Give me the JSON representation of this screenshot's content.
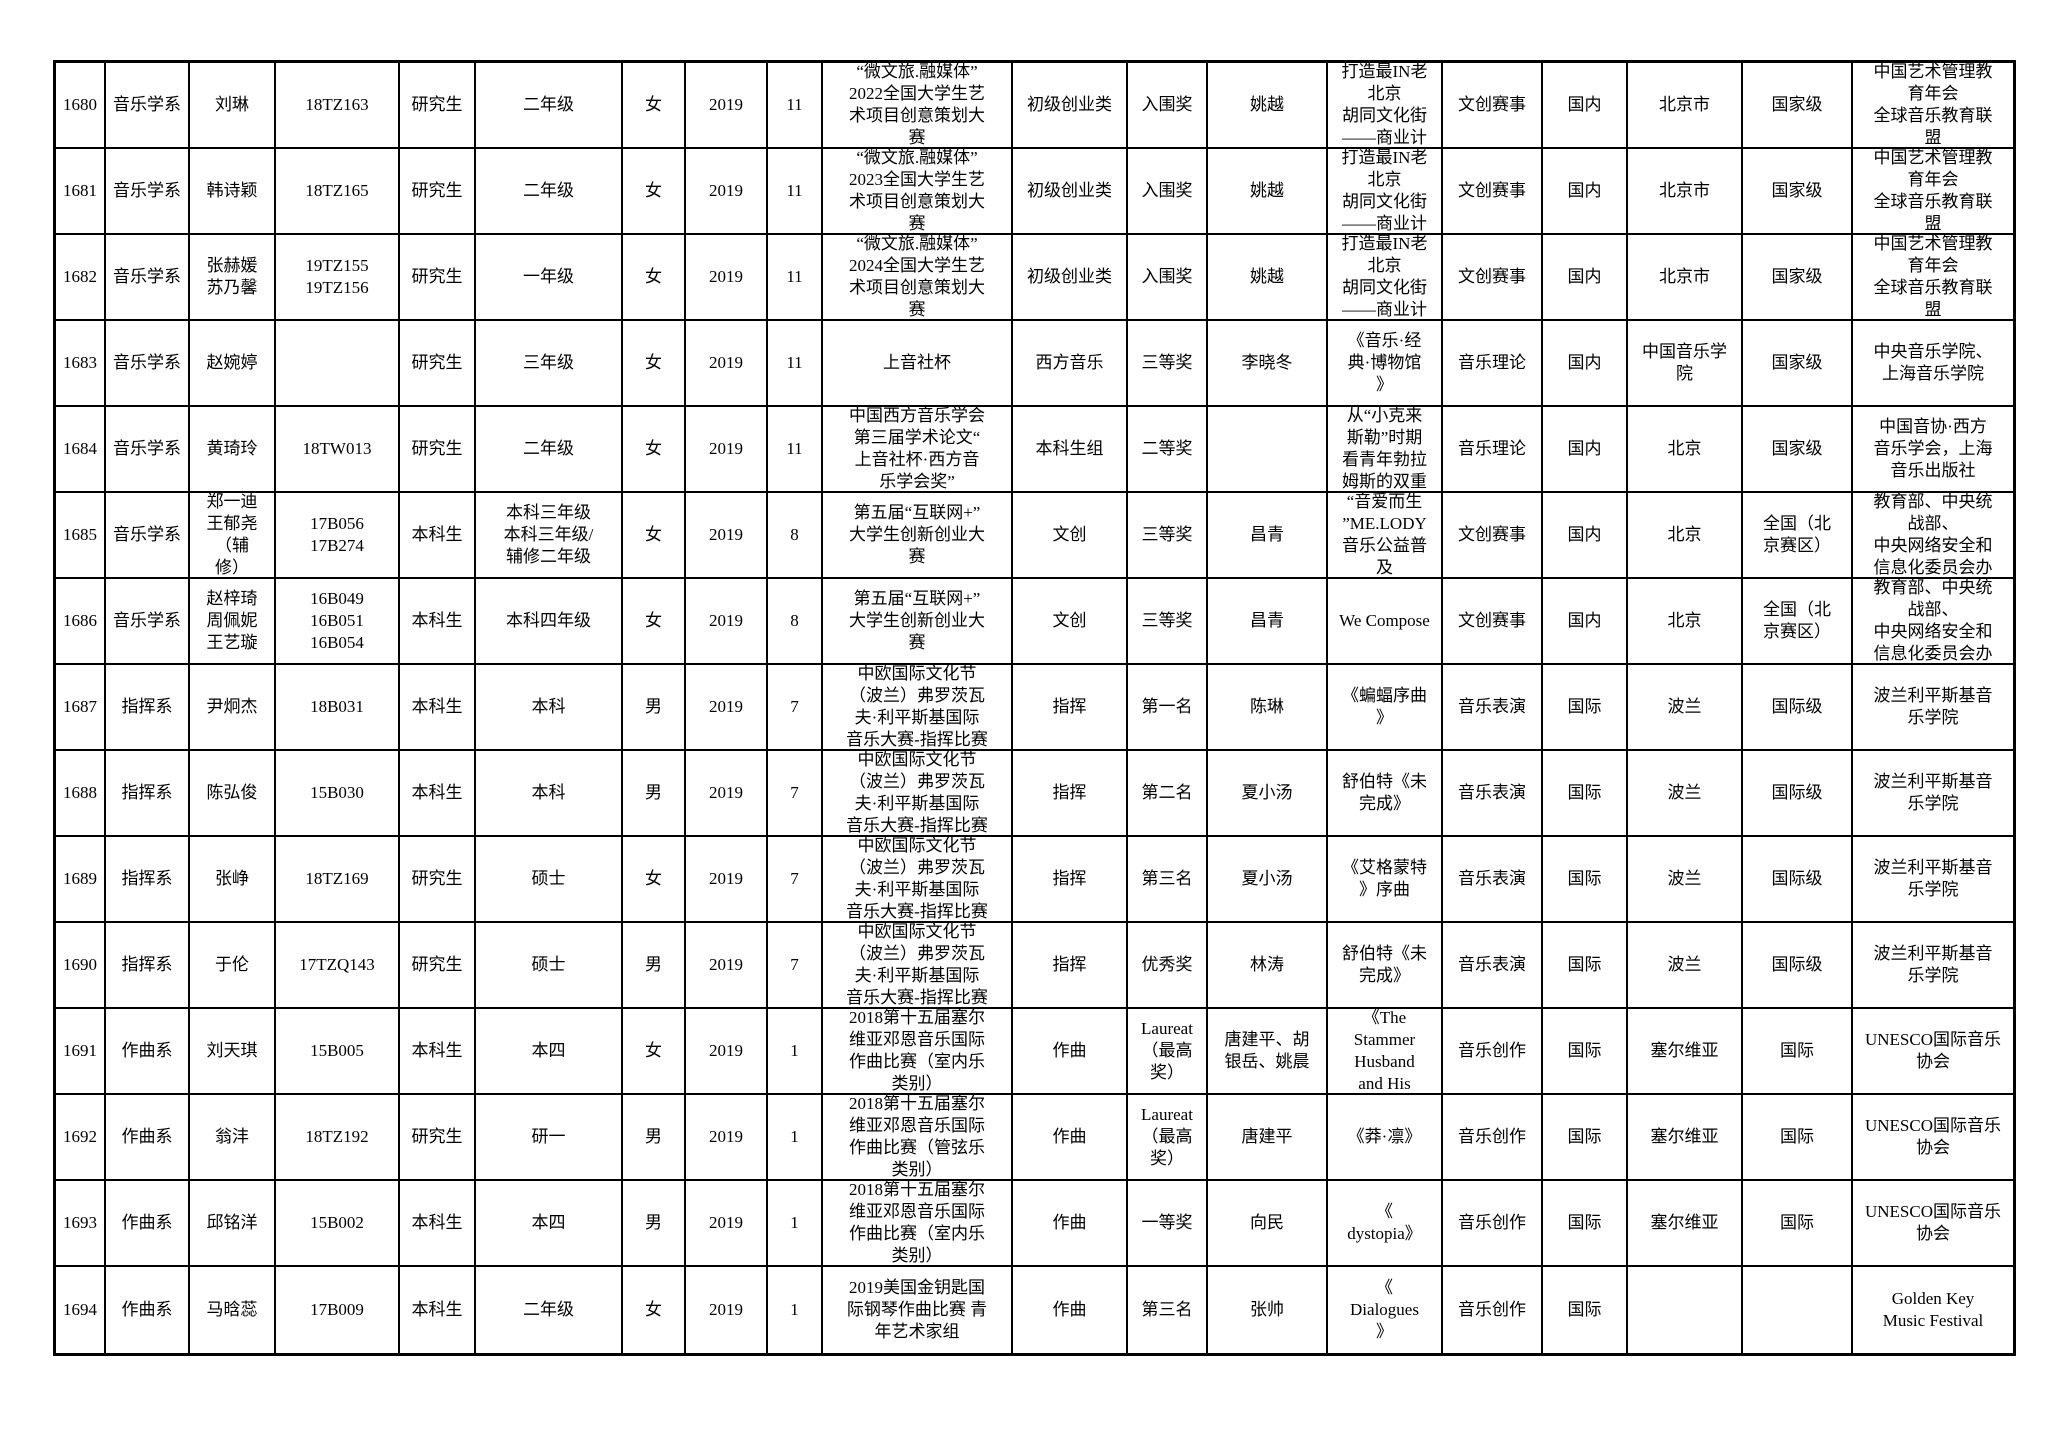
{
  "document": {
    "kind": "student-competition-awards-table",
    "language": "zh-CN",
    "text_color": "#000000",
    "border_color": "#000000",
    "background_color": "#ffffff"
  },
  "table": {
    "columns": [
      "index",
      "department",
      "name",
      "student_id",
      "student_type",
      "grade",
      "gender",
      "year",
      "month",
      "competition",
      "category",
      "award",
      "advisor",
      "work",
      "event_type",
      "scope",
      "location",
      "level",
      "organizer"
    ],
    "rows": [
      {
        "index": "1680",
        "department": "音乐学系",
        "name": "刘琳",
        "student_id": "18TZ163",
        "student_type": "研究生",
        "grade": "二年级",
        "gender": "女",
        "year": "2019",
        "month": "11",
        "competition": "“微文旅.融媒体”\n2022全国大学生艺\n术项目创意策划大\n赛",
        "category": "初级创业类",
        "award": "入围奖",
        "advisor": "姚越",
        "work": "打造最IN老\n北京\n胡同文化街\n——商业计",
        "event_type": "文创赛事",
        "scope": "国内",
        "location": "北京市",
        "level": "国家级",
        "organizer": "中国艺术管理教\n育年会\n全球音乐教育联\n盟"
      },
      {
        "index": "1681",
        "department": "音乐学系",
        "name": "韩诗颖",
        "student_id": "18TZ165",
        "student_type": "研究生",
        "grade": "二年级",
        "gender": "女",
        "year": "2019",
        "month": "11",
        "competition": "“微文旅.融媒体”\n2023全国大学生艺\n术项目创意策划大\n赛",
        "category": "初级创业类",
        "award": "入围奖",
        "advisor": "姚越",
        "work": "打造最IN老\n北京\n胡同文化街\n——商业计",
        "event_type": "文创赛事",
        "scope": "国内",
        "location": "北京市",
        "level": "国家级",
        "organizer": "中国艺术管理教\n育年会\n全球音乐教育联\n盟"
      },
      {
        "index": "1682",
        "department": "音乐学系",
        "name": "张赫媛\n苏乃馨",
        "student_id": "19TZ155\n19TZ156",
        "student_type": "研究生",
        "grade": "一年级",
        "gender": "女",
        "year": "2019",
        "month": "11",
        "competition": "“微文旅.融媒体”\n2024全国大学生艺\n术项目创意策划大\n赛",
        "category": "初级创业类",
        "award": "入围奖",
        "advisor": "姚越",
        "work": "打造最IN老\n北京\n胡同文化街\n——商业计",
        "event_type": "文创赛事",
        "scope": "国内",
        "location": "北京市",
        "level": "国家级",
        "organizer": "中国艺术管理教\n育年会\n全球音乐教育联\n盟"
      },
      {
        "index": "1683",
        "department": "音乐学系",
        "name": "赵婉婷",
        "student_id": "",
        "student_type": "研究生",
        "grade": "三年级",
        "gender": "女",
        "year": "2019",
        "month": "11",
        "competition": "上音社杯",
        "category": "西方音乐",
        "award": "三等奖",
        "advisor": "李晓冬",
        "work": "《音乐·经\n典·博物馆\n》",
        "event_type": "音乐理论",
        "scope": "国内",
        "location": "中国音乐学\n院",
        "level": "国家级",
        "organizer": "中央音乐学院、\n上海音乐学院"
      },
      {
        "index": "1684",
        "department": "音乐学系",
        "name": "黄琦玲",
        "student_id": "18TW013",
        "student_type": "研究生",
        "grade": "二年级",
        "gender": "女",
        "year": "2019",
        "month": "11",
        "competition": "中国西方音乐学会\n第三届学术论文“\n上音社杯·西方音\n乐学会奖”",
        "category": "本科生组",
        "award": "二等奖",
        "advisor": "",
        "work": "从“小克来\n斯勒”时期\n看青年勃拉\n姆斯的双重",
        "event_type": "音乐理论",
        "scope": "国内",
        "location": "北京",
        "level": "国家级",
        "organizer": "中国音协·西方\n音乐学会，上海\n音乐出版社"
      },
      {
        "index": "1685",
        "department": "音乐学系",
        "name": "郑一迪\n王郁尧\n（辅\n修）",
        "student_id": "17B056\n17B274",
        "student_type": "本科生",
        "grade": "本科三年级\n本科三年级/\n辅修二年级",
        "gender": "女",
        "year": "2019",
        "month": "8",
        "competition": "第五届“互联网+”\n大学生创新创业大\n赛",
        "category": "文创",
        "award": "三等奖",
        "advisor": "昌青",
        "work": "“音爱而生\n”ME.LODY\n音乐公益普\n及",
        "event_type": "文创赛事",
        "scope": "国内",
        "location": "北京",
        "level": "全国（北\n京赛区）",
        "organizer": "教育部、中央统\n战部、\n中央网络安全和\n信息化委员会办"
      },
      {
        "index": "1686",
        "department": "音乐学系",
        "name": "赵梓琦\n周佩妮\n王艺璇",
        "student_id": "16B049\n16B051\n16B054",
        "student_type": "本科生",
        "grade": "本科四年级",
        "gender": "女",
        "year": "2019",
        "month": "8",
        "competition": "第五届“互联网+”\n大学生创新创业大\n赛",
        "category": "文创",
        "award": "三等奖",
        "advisor": "昌青",
        "work": "We Compose",
        "event_type": "文创赛事",
        "scope": "国内",
        "location": "北京",
        "level": "全国（北\n京赛区）",
        "organizer": "教育部、中央统\n战部、\n中央网络安全和\n信息化委员会办"
      },
      {
        "index": "1687",
        "department": "指挥系",
        "name": "尹炯杰",
        "student_id": "18B031",
        "student_type": "本科生",
        "grade": "本科",
        "gender": "男",
        "year": "2019",
        "month": "7",
        "competition": "中欧国际文化节\n（波兰）弗罗茨瓦\n夫·利平斯基国际\n音乐大赛-指挥比赛",
        "category": "指挥",
        "award": "第一名",
        "advisor": "陈琳",
        "work": "《蝙蝠序曲\n》",
        "event_type": "音乐表演",
        "scope": "国际",
        "location": "波兰",
        "level": "国际级",
        "organizer": "波兰利平斯基音\n乐学院"
      },
      {
        "index": "1688",
        "department": "指挥系",
        "name": "陈弘俊",
        "student_id": "15B030",
        "student_type": "本科生",
        "grade": "本科",
        "gender": "男",
        "year": "2019",
        "month": "7",
        "competition": "中欧国际文化节\n（波兰）弗罗茨瓦\n夫·利平斯基国际\n音乐大赛-指挥比赛",
        "category": "指挥",
        "award": "第二名",
        "advisor": "夏小汤",
        "work": "舒伯特《未\n完成》",
        "event_type": "音乐表演",
        "scope": "国际",
        "location": "波兰",
        "level": "国际级",
        "organizer": "波兰利平斯基音\n乐学院"
      },
      {
        "index": "1689",
        "department": "指挥系",
        "name": "张峥",
        "student_id": "18TZ169",
        "student_type": "研究生",
        "grade": "硕士",
        "gender": "女",
        "year": "2019",
        "month": "7",
        "competition": "中欧国际文化节\n（波兰）弗罗茨瓦\n夫·利平斯基国际\n音乐大赛-指挥比赛",
        "category": "指挥",
        "award": "第三名",
        "advisor": "夏小汤",
        "work": "《艾格蒙特\n》序曲",
        "event_type": "音乐表演",
        "scope": "国际",
        "location": "波兰",
        "level": "国际级",
        "organizer": "波兰利平斯基音\n乐学院"
      },
      {
        "index": "1690",
        "department": "指挥系",
        "name": "于伦",
        "student_id": "17TZQ143",
        "student_type": "研究生",
        "grade": "硕士",
        "gender": "男",
        "year": "2019",
        "month": "7",
        "competition": "中欧国际文化节\n（波兰）弗罗茨瓦\n夫·利平斯基国际\n音乐大赛-指挥比赛",
        "category": "指挥",
        "award": "优秀奖",
        "advisor": "林涛",
        "work": "舒伯特《未\n完成》",
        "event_type": "音乐表演",
        "scope": "国际",
        "location": "波兰",
        "level": "国际级",
        "organizer": "波兰利平斯基音\n乐学院"
      },
      {
        "index": "1691",
        "department": "作曲系",
        "name": "刘天琪",
        "student_id": "15B005",
        "student_type": "本科生",
        "grade": "本四",
        "gender": "女",
        "year": "2019",
        "month": "1",
        "competition": "2018第十五届塞尔\n维亚邓恩音乐国际\n作曲比赛（室内乐\n类别）",
        "category": "作曲",
        "award": "Laureat\n（最高\n奖）",
        "advisor": "唐建平、胡\n银岳、姚晨",
        "work": "《The\nStammer\nHusband\nand His",
        "event_type": "音乐创作",
        "scope": "国际",
        "location": "塞尔维亚",
        "level": "国际",
        "organizer": "UNESCO国际音乐\n协会"
      },
      {
        "index": "1692",
        "department": "作曲系",
        "name": "翁沣",
        "student_id": "18TZ192",
        "student_type": "研究生",
        "grade": "研一",
        "gender": "男",
        "year": "2019",
        "month": "1",
        "competition": "2018第十五届塞尔\n维亚邓恩音乐国际\n作曲比赛（管弦乐\n类别）",
        "category": "作曲",
        "award": "Laureat\n（最高\n奖）",
        "advisor": "唐建平",
        "work": "《莽·凛》",
        "event_type": "音乐创作",
        "scope": "国际",
        "location": "塞尔维亚",
        "level": "国际",
        "organizer": "UNESCO国际音乐\n协会"
      },
      {
        "index": "1693",
        "department": "作曲系",
        "name": "邱铭洋",
        "student_id": "15B002",
        "student_type": "本科生",
        "grade": "本四",
        "gender": "男",
        "year": "2019",
        "month": "1",
        "competition": "2018第十五届塞尔\n维亚邓恩音乐国际\n作曲比赛（室内乐\n类别）",
        "category": "作曲",
        "award": "一等奖",
        "advisor": "向民",
        "work": "《\ndystopia》",
        "event_type": "音乐创作",
        "scope": "国际",
        "location": "塞尔维亚",
        "level": "国际",
        "organizer": "UNESCO国际音乐\n协会"
      },
      {
        "index": "1694",
        "department": "作曲系",
        "name": "马晗蕊",
        "student_id": "17B009",
        "student_type": "本科生",
        "grade": "二年级",
        "gender": "女",
        "year": "2019",
        "month": "1",
        "competition": "2019美国金钥匙国\n际钢琴作曲比赛 青\n年艺术家组",
        "category": "作曲",
        "award": "第三名",
        "advisor": "张帅",
        "work": "《\nDialogues\n》",
        "event_type": "音乐创作",
        "scope": "国际",
        "location": "",
        "level": "",
        "organizer": "Golden Key\nMusic Festival"
      }
    ]
  }
}
